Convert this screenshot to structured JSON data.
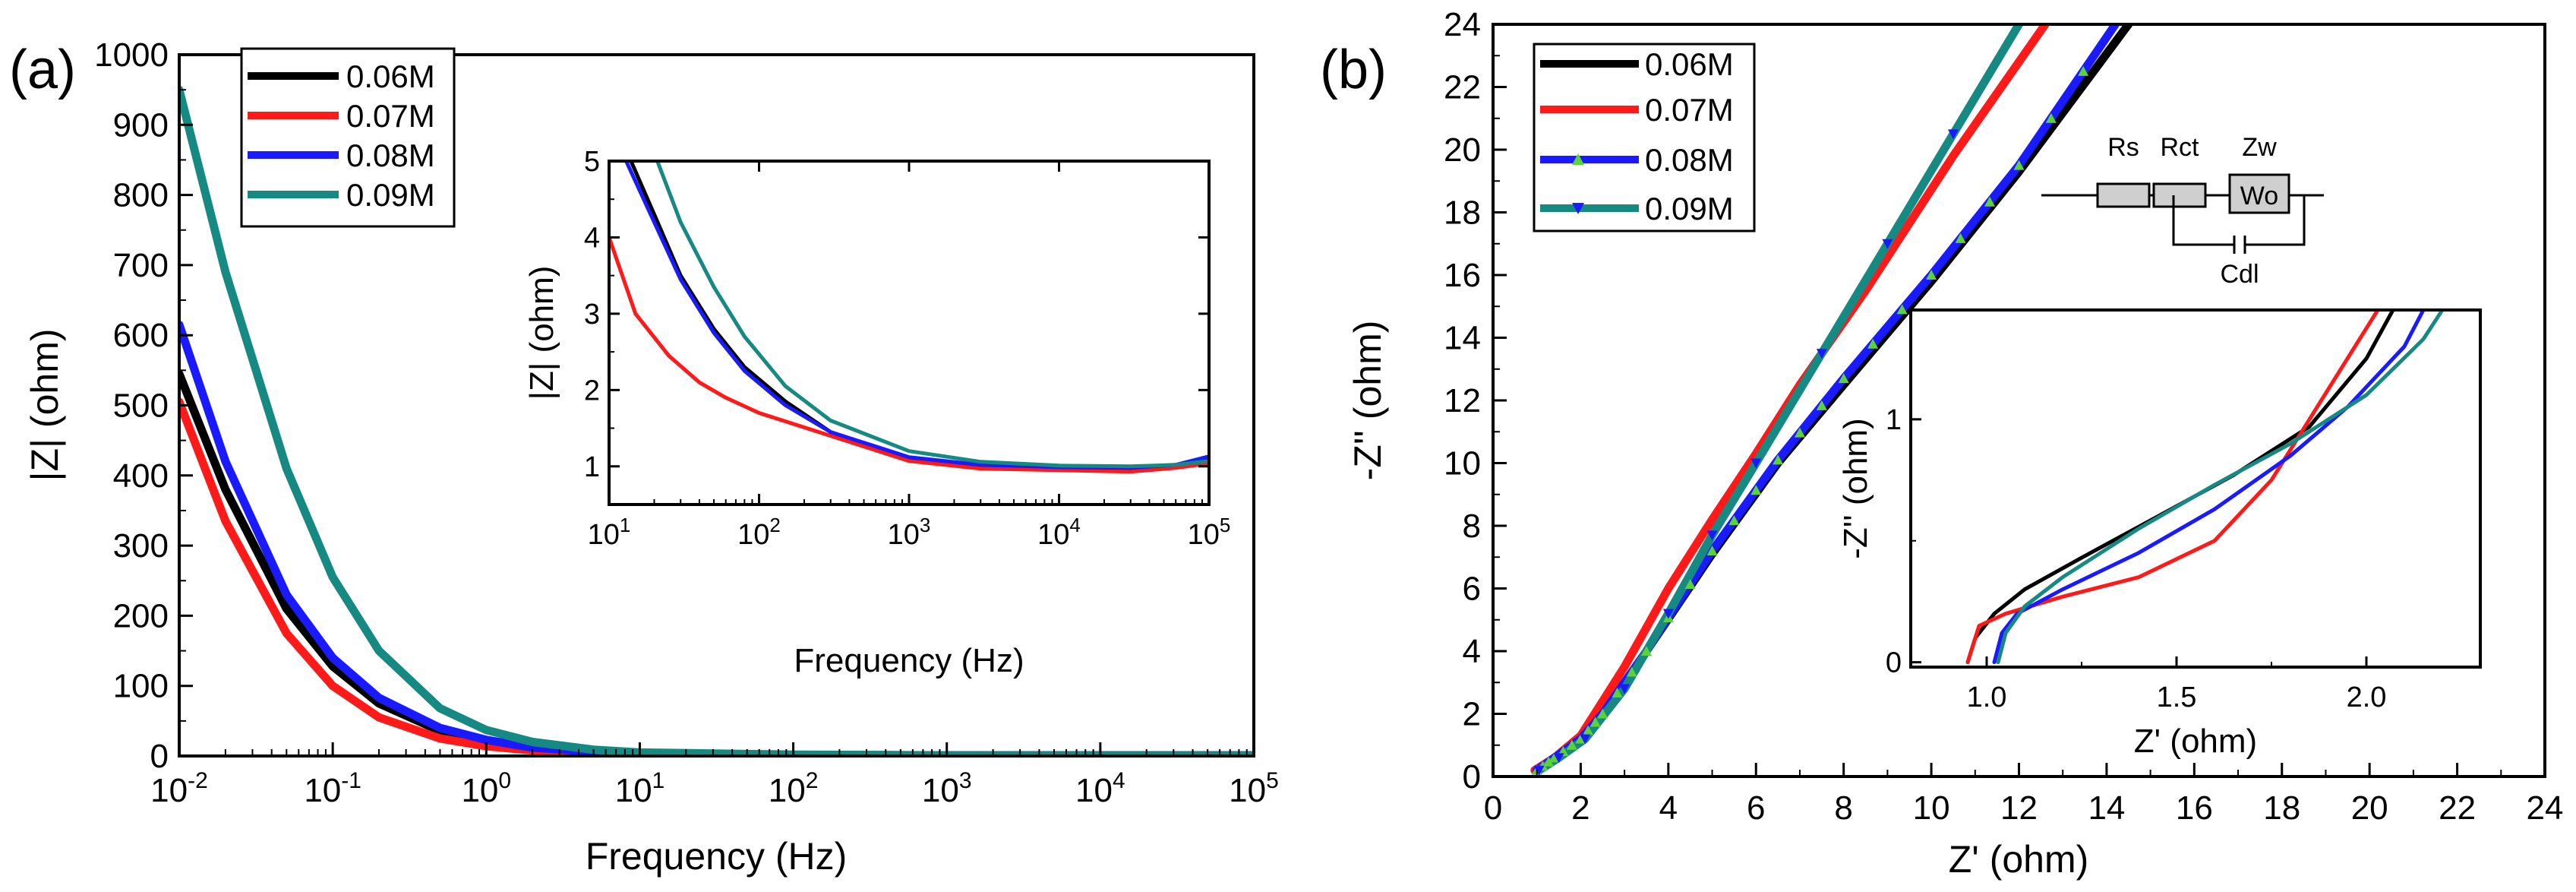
{
  "series_colors": {
    "0.06M": "#000000",
    "0.07M": "#ff1a1a",
    "0.08M": "#1a1aff",
    "0.09M": "#168a82"
  },
  "marker_color": "#5bd13a",
  "chart_data": [
    {
      "id": "a",
      "panel_label": "(a)",
      "type": "line",
      "title": "",
      "xlabel": "Frequency (Hz)",
      "ylabel": "|Z| (ohm)",
      "xscale": "log",
      "xlim": [
        0.01,
        100000
      ],
      "ylim": [
        0,
        1000
      ],
      "xticks": [
        0.01,
        0.1,
        1,
        10,
        100,
        1000,
        10000,
        100000
      ],
      "xtick_labels": [
        {
          "base": "10",
          "exp": "-2"
        },
        {
          "base": "10",
          "exp": "-1"
        },
        {
          "base": "10",
          "exp": "0"
        },
        {
          "base": "10",
          "exp": "1"
        },
        {
          "base": "10",
          "exp": "2"
        },
        {
          "base": "10",
          "exp": "3"
        },
        {
          "base": "10",
          "exp": "4"
        },
        {
          "base": "10",
          "exp": "5"
        }
      ],
      "yticks": [
        0,
        100,
        200,
        300,
        400,
        500,
        600,
        700,
        800,
        900,
        1000
      ],
      "ytick_labels": [
        "0",
        "100",
        "200",
        "300",
        "400",
        "500",
        "600",
        "700",
        "800",
        "900",
        "1000"
      ],
      "legend": [
        "0.06M",
        "0.07M",
        "0.08M",
        "0.09M"
      ],
      "legend_position": "top-left",
      "series": [
        {
          "name": "0.06M",
          "x": [
            0.01,
            0.02,
            0.05,
            0.1,
            0.2,
            0.5,
            1,
            2,
            5,
            10,
            100,
            1000,
            10000,
            100000
          ],
          "y": [
            545,
            380,
            210,
            128,
            75,
            36,
            20,
            11,
            5,
            3,
            1.5,
            1,
            1,
            1
          ]
        },
        {
          "name": "0.07M",
          "x": [
            0.01,
            0.02,
            0.05,
            0.1,
            0.2,
            0.5,
            1,
            2,
            5,
            10,
            100,
            1000,
            10000,
            100000
          ],
          "y": [
            505,
            335,
            175,
            100,
            55,
            25,
            14,
            8,
            4,
            3,
            1.5,
            1,
            1,
            1
          ]
        },
        {
          "name": "0.08M",
          "x": [
            0.01,
            0.02,
            0.05,
            0.1,
            0.2,
            0.5,
            1,
            2,
            5,
            10,
            100,
            1000,
            10000,
            100000
          ],
          "y": [
            615,
            420,
            230,
            140,
            83,
            40,
            23,
            12,
            6,
            3,
            1.5,
            1,
            1,
            1
          ]
        },
        {
          "name": "0.09M",
          "x": [
            0.01,
            0.02,
            0.05,
            0.1,
            0.2,
            0.5,
            1,
            2,
            5,
            10,
            100,
            1000,
            10000,
            100000
          ],
          "y": [
            950,
            690,
            410,
            255,
            150,
            68,
            37,
            20,
            9,
            5,
            2,
            1,
            1,
            1
          ]
        }
      ],
      "inset": {
        "type": "line",
        "xlabel": "Frequency (Hz)",
        "ylabel": "|Z| (ohm)",
        "xscale": "log",
        "xlim": [
          10,
          100000
        ],
        "ylim": [
          0.5,
          5
        ],
        "xticks": [
          10,
          100,
          1000,
          10000,
          100000
        ],
        "xtick_labels": [
          {
            "base": "10",
            "exp": "1"
          },
          {
            "base": "10",
            "exp": "2"
          },
          {
            "base": "10",
            "exp": "3"
          },
          {
            "base": "10",
            "exp": "4"
          },
          {
            "base": "10",
            "exp": "5"
          }
        ],
        "yticks": [
          1,
          2,
          3,
          4,
          5
        ],
        "ytick_labels": [
          "1",
          "2",
          "3",
          "4",
          "5"
        ],
        "series": [
          {
            "name": "0.06M",
            "x": [
              14,
              20,
              30,
              50,
              80,
              150,
              300,
              1000,
              3000,
              10000,
              30000,
              60000,
              100000
            ],
            "y": [
              5,
              4.3,
              3.5,
              2.8,
              2.3,
              1.85,
              1.45,
              1.1,
              1.0,
              0.97,
              0.96,
              1.0,
              1.08
            ]
          },
          {
            "name": "0.07M",
            "x": [
              10,
              15,
              25,
              40,
              60,
              100,
              300,
              1000,
              3000,
              10000,
              30000,
              60000,
              100000
            ],
            "y": [
              4.0,
              3.0,
              2.45,
              2.1,
              1.9,
              1.7,
              1.4,
              1.07,
              0.97,
              0.95,
              0.93,
              0.98,
              1.04
            ]
          },
          {
            "name": "0.08M",
            "x": [
              13,
              20,
              30,
              50,
              80,
              150,
              300,
              1000,
              3000,
              10000,
              30000,
              60000,
              100000
            ],
            "y": [
              5,
              4.2,
              3.45,
              2.75,
              2.25,
              1.8,
              1.45,
              1.12,
              1.02,
              0.99,
              0.98,
              1.02,
              1.13
            ]
          },
          {
            "name": "0.09M",
            "x": [
              21,
              30,
              50,
              80,
              150,
              300,
              1000,
              3000,
              10000,
              30000,
              60000,
              100000
            ],
            "y": [
              5,
              4.2,
              3.35,
              2.7,
              2.05,
              1.6,
              1.2,
              1.06,
              1.01,
              1.0,
              1.02,
              1.07
            ]
          }
        ]
      }
    },
    {
      "id": "b",
      "panel_label": "(b)",
      "type": "line",
      "title": "",
      "xlabel": "Z' (ohm)",
      "ylabel": "-Z'' (ohm)",
      "xlim": [
        0,
        24
      ],
      "ylim": [
        0,
        24
      ],
      "xticks": [
        0,
        2,
        4,
        6,
        8,
        10,
        12,
        14,
        16,
        18,
        20,
        22,
        24
      ],
      "xtick_labels": [
        "0",
        "2",
        "4",
        "6",
        "8",
        "10",
        "12",
        "14",
        "16",
        "18",
        "20",
        "22",
        "24"
      ],
      "yticks": [
        0,
        2,
        4,
        6,
        8,
        10,
        12,
        14,
        16,
        18,
        20,
        22,
        24
      ],
      "ytick_labels": [
        "0",
        "2",
        "4",
        "6",
        "8",
        "10",
        "12",
        "14",
        "16",
        "18",
        "20",
        "22",
        "24"
      ],
      "legend": [
        "0.06M",
        "0.07M",
        "0.08M",
        "0.09M"
      ],
      "legend_position": "top-left",
      "series": [
        {
          "name": "0.06M",
          "x": [
            1.0,
            1.4,
            2.0,
            2.5,
            3.5,
            5.0,
            6.5,
            8.0,
            10.0,
            12.0,
            14.5
          ],
          "y": [
            0.2,
            0.6,
            1.2,
            2.0,
            4.0,
            7.1,
            10.0,
            12.5,
            15.8,
            19.3,
            24
          ]
        },
        {
          "name": "0.07M",
          "x": [
            0.95,
            1.4,
            2.0,
            3.0,
            4.0,
            5.0,
            6.0,
            7.0,
            8.5,
            10.5,
            12.6
          ],
          "y": [
            0.2,
            0.6,
            1.3,
            3.5,
            6.0,
            8.2,
            10.3,
            12.5,
            15.5,
            19.8,
            24
          ]
        },
        {
          "name": "0.08M",
          "x": [
            1.0,
            1.4,
            2.0,
            2.5,
            3.5,
            5.0,
            6.5,
            8.0,
            10.0,
            12.0,
            14.2
          ],
          "y": [
            0.2,
            0.6,
            1.2,
            2.0,
            4.0,
            7.2,
            10.1,
            12.7,
            16.0,
            19.5,
            24
          ]
        },
        {
          "name": "0.09M",
          "x": [
            1.05,
            1.5,
            2.1,
            3.0,
            4.0,
            5.0,
            6.0,
            7.5,
            9.0,
            10.5,
            12.0
          ],
          "y": [
            0.2,
            0.6,
            1.2,
            2.8,
            5.2,
            7.7,
            10.0,
            13.5,
            17.0,
            20.5,
            24
          ]
        }
      ],
      "inset": {
        "type": "line",
        "xlabel": "Z' (ohm)",
        "ylabel": "-Z'' (ohm)",
        "xlim": [
          0.8,
          2.3
        ],
        "ylim": [
          -0.02,
          1.45
        ],
        "xticks": [
          1.0,
          1.5,
          2.0
        ],
        "xtick_labels": [
          "1.0",
          "1.5",
          "2.0"
        ],
        "yticks": [
          0,
          1
        ],
        "ytick_labels": [
          "0",
          "1"
        ],
        "series": [
          {
            "name": "0.06M",
            "x": [
              0.95,
              0.97,
              1.02,
              1.1,
              1.25,
              1.45,
              1.65,
              1.85,
              2.0,
              2.07
            ],
            "y": [
              0,
              0.1,
              0.2,
              0.3,
              0.43,
              0.6,
              0.77,
              0.97,
              1.25,
              1.45
            ]
          },
          {
            "name": "0.07M",
            "x": [
              0.95,
              0.98,
              1.05,
              1.2,
              1.4,
              1.6,
              1.75,
              1.85,
              1.95,
              2.03
            ],
            "y": [
              0,
              0.15,
              0.2,
              0.27,
              0.35,
              0.5,
              0.75,
              1.0,
              1.25,
              1.45
            ]
          },
          {
            "name": "0.08M",
            "x": [
              1.02,
              1.04,
              1.08,
              1.2,
              1.4,
              1.6,
              1.8,
              1.95,
              2.1,
              2.15
            ],
            "y": [
              0,
              0.12,
              0.2,
              0.3,
              0.45,
              0.63,
              0.85,
              1.05,
              1.3,
              1.45
            ]
          },
          {
            "name": "0.09M",
            "x": [
              1.03,
              1.05,
              1.1,
              1.2,
              1.4,
              1.6,
              1.8,
              2.0,
              2.15,
              2.2
            ],
            "y": [
              0,
              0.12,
              0.23,
              0.35,
              0.55,
              0.73,
              0.9,
              1.1,
              1.33,
              1.45
            ]
          }
        ]
      },
      "circuit": {
        "labels": [
          "Rs",
          "Rct",
          "Zw",
          "Wo",
          "Cdl"
        ]
      }
    }
  ]
}
